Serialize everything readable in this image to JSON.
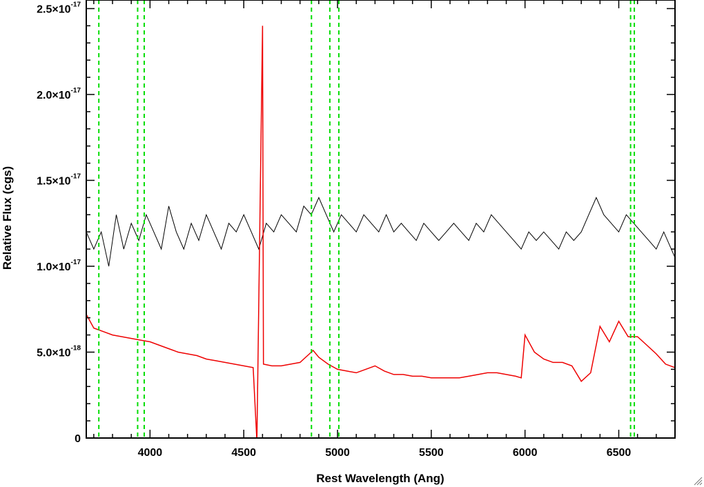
{
  "chart_data": {
    "type": "line",
    "title": "",
    "xlabel": "Rest Wavelength (Ang)",
    "ylabel": "Relative Flux (cgs)",
    "xlim": [
      3660,
      6800
    ],
    "ylim": [
      0,
      2.55e-17
    ],
    "x_ticks": [
      {
        "value": 4000,
        "label": "4000"
      },
      {
        "value": 4500,
        "label": "4500"
      },
      {
        "value": 5000,
        "label": "5000"
      },
      {
        "value": 5500,
        "label": "5500"
      },
      {
        "value": 6000,
        "label": "6000"
      },
      {
        "value": 6500,
        "label": "6500"
      }
    ],
    "y_ticks": [
      {
        "value": 0,
        "mantissa": "0",
        "exponent": ""
      },
      {
        "value": 5e-18,
        "mantissa": "5.0×10",
        "exponent": "-18"
      },
      {
        "value": 1e-17,
        "mantissa": "1.0×10",
        "exponent": "-17"
      },
      {
        "value": 1.5e-17,
        "mantissa": "1.5×10",
        "exponent": "-17"
      },
      {
        "value": 2e-17,
        "mantissa": "2.0×10",
        "exponent": "-17"
      },
      {
        "value": 2.5e-17,
        "mantissa": "2.5×10",
        "exponent": "-17"
      }
    ],
    "reference_lines": {
      "color": "#00dd00",
      "style": "dashed",
      "x": [
        3727,
        3934,
        3969,
        4861,
        4959,
        5007,
        6563,
        6583
      ]
    },
    "series": [
      {
        "color": "#000000",
        "x": [
          3660,
          3700,
          3740,
          3780,
          3820,
          3860,
          3900,
          3940,
          3980,
          4020,
          4060,
          4100,
          4140,
          4180,
          4220,
          4260,
          4300,
          4340,
          4380,
          4420,
          4460,
          4500,
          4540,
          4580,
          4620,
          4660,
          4700,
          4740,
          4780,
          4820,
          4860,
          4900,
          4940,
          4980,
          5020,
          5060,
          5100,
          5140,
          5180,
          5220,
          5260,
          5300,
          5340,
          5380,
          5420,
          5460,
          5500,
          5540,
          5580,
          5620,
          5660,
          5700,
          5740,
          5780,
          5820,
          5860,
          5900,
          5940,
          5980,
          6020,
          6060,
          6100,
          6140,
          6180,
          6220,
          6260,
          6300,
          6340,
          6380,
          6420,
          6460,
          6500,
          6540,
          6580,
          6620,
          6660,
          6700,
          6740,
          6780,
          6800
        ],
        "y": [
          1.2e-17,
          1.1e-17,
          1.2e-17,
          1e-17,
          1.3e-17,
          1.1e-17,
          1.25e-17,
          1.15e-17,
          1.3e-17,
          1.2e-17,
          1.1e-17,
          1.35e-17,
          1.2e-17,
          1.1e-17,
          1.25e-17,
          1.15e-17,
          1.3e-17,
          1.2e-17,
          1.1e-17,
          1.25e-17,
          1.2e-17,
          1.3e-17,
          1.2e-17,
          1.1e-17,
          1.25e-17,
          1.2e-17,
          1.3e-17,
          1.25e-17,
          1.2e-17,
          1.35e-17,
          1.3e-17,
          1.4e-17,
          1.3e-17,
          1.2e-17,
          1.3e-17,
          1.25e-17,
          1.2e-17,
          1.3e-17,
          1.25e-17,
          1.2e-17,
          1.3e-17,
          1.2e-17,
          1.25e-17,
          1.2e-17,
          1.15e-17,
          1.25e-17,
          1.2e-17,
          1.15e-17,
          1.2e-17,
          1.25e-17,
          1.2e-17,
          1.15e-17,
          1.25e-17,
          1.2e-17,
          1.3e-17,
          1.25e-17,
          1.2e-17,
          1.15e-17,
          1.1e-17,
          1.2e-17,
          1.15e-17,
          1.2e-17,
          1.15e-17,
          1.1e-17,
          1.2e-17,
          1.15e-17,
          1.2e-17,
          1.3e-17,
          1.4e-17,
          1.3e-17,
          1.25e-17,
          1.2e-17,
          1.3e-17,
          1.25e-17,
          1.2e-17,
          1.15e-17,
          1.1e-17,
          1.2e-17,
          1.1e-17,
          1.05e-17
        ]
      },
      {
        "color": "#ee0000",
        "x": [
          3660,
          3700,
          3750,
          3800,
          3850,
          3900,
          3950,
          4000,
          4050,
          4100,
          4150,
          4200,
          4250,
          4300,
          4350,
          4400,
          4450,
          4500,
          4550,
          4570,
          4600,
          4605,
          4650,
          4700,
          4750,
          4800,
          4850,
          4870,
          4900,
          4950,
          5000,
          5050,
          5100,
          5150,
          5200,
          5250,
          5300,
          5350,
          5400,
          5450,
          5500,
          5550,
          5600,
          5650,
          5700,
          5750,
          5800,
          5850,
          5900,
          5950,
          5980,
          6000,
          6050,
          6100,
          6150,
          6200,
          6250,
          6300,
          6350,
          6400,
          6450,
          6500,
          6550,
          6600,
          6650,
          6700,
          6750,
          6800
        ],
        "y": [
          7.2e-18,
          6.4e-18,
          6.2e-18,
          6e-18,
          5.9e-18,
          5.8e-18,
          5.7e-18,
          5.6e-18,
          5.4e-18,
          5.2e-18,
          5e-18,
          4.9e-18,
          4.8e-18,
          4.6e-18,
          4.5e-18,
          4.4e-18,
          4.3e-18,
          4.2e-18,
          4.1e-18,
          -2e-19,
          2.4e-17,
          4.3e-18,
          4.2e-18,
          4.2e-18,
          4.3e-18,
          4.4e-18,
          4.9e-18,
          5.1e-18,
          4.7e-18,
          4.3e-18,
          4e-18,
          3.9e-18,
          3.8e-18,
          4e-18,
          4.2e-18,
          3.9e-18,
          3.7e-18,
          3.7e-18,
          3.6e-18,
          3.6e-18,
          3.5e-18,
          3.5e-18,
          3.5e-18,
          3.5e-18,
          3.6e-18,
          3.7e-18,
          3.8e-18,
          3.8e-18,
          3.7e-18,
          3.6e-18,
          3.5e-18,
          6e-18,
          5e-18,
          4.6e-18,
          4.4e-18,
          4.4e-18,
          4.2e-18,
          3.3e-18,
          3.8e-18,
          6.5e-18,
          5.6e-18,
          6.8e-18,
          5.9e-18,
          5.9e-18,
          5.4e-18,
          4.9e-18,
          4.3e-18,
          4.1e-18
        ]
      }
    ],
    "grid": false,
    "legend": "none"
  }
}
